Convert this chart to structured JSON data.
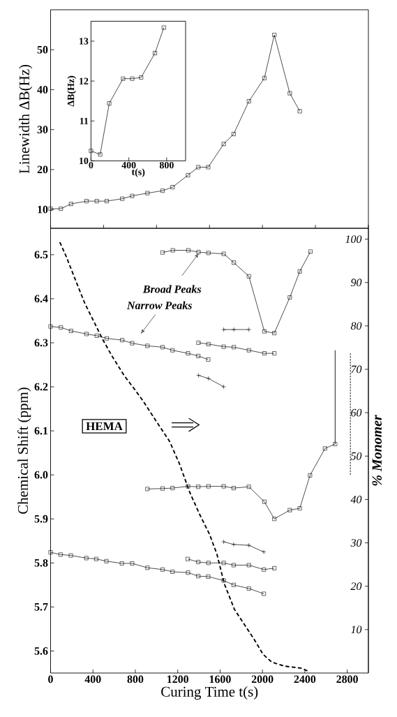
{
  "chart_data": [
    {
      "type": "line",
      "ylabel": "Linewidth ΔB(Hz)",
      "color": "#000000",
      "marker": "square",
      "x": [
        0,
        97,
        193,
        339,
        436,
        530,
        676,
        770,
        914,
        1057,
        1151,
        1297,
        1394,
        1488,
        1634,
        1728,
        1872,
        2018,
        2112,
        2258,
        2352
      ],
      "values": [
        10.2,
        10.2,
        11.4,
        12.1,
        12.1,
        12.1,
        12.7,
        13.4,
        14.1,
        14.7,
        15.6,
        18.6,
        20.6,
        20.6,
        26.4,
        28.9,
        37.1,
        42.9,
        53.7,
        39.1,
        34.6
      ],
      "xlim": [
        0,
        3000
      ],
      "xticks": [
        {
          "value": 0,
          "label": null
        },
        {
          "value": 500,
          "label": null
        },
        {
          "value": 1000,
          "label": null
        },
        {
          "value": 1500,
          "label": null
        },
        {
          "value": 2000,
          "label": null
        },
        {
          "value": 2500,
          "label": null
        },
        {
          "value": 3000,
          "label": null
        }
      ],
      "ylim": [
        5.3,
        60
      ],
      "yticks": [
        10,
        20,
        30,
        40,
        50
      ],
      "tick_labels": "y"
    },
    {
      "type": "line",
      "xlabel": "t(s)",
      "ylabel": "ΔB(Hz)",
      "color": "#000000",
      "marker": "square",
      "x": [
        0,
        97,
        193,
        339,
        436,
        530,
        676,
        770
      ],
      "values": [
        10.25,
        10.16,
        11.44,
        12.06,
        12.06,
        12.09,
        12.7,
        13.34
      ],
      "xlim": [
        0,
        1000
      ],
      "xticks": [
        0,
        400,
        800
      ],
      "ylim": [
        10,
        13.5
      ],
      "yticks": [
        10,
        11,
        12,
        13
      ]
    },
    {
      "type": "line",
      "xlabel": "Curing Time t(s)",
      "ylabel": "Chemical Shift (ppm)",
      "y2label": "% Monomer",
      "marker": "square",
      "series": [
        {
          "color": "#000000",
          "marker": "square",
          "x": [
            1057,
            1154,
            1300,
            1396,
            1490,
            1634,
            1730,
            1872,
            2018,
            2112,
            2258,
            2352,
            2453
          ],
          "values": [
            6.505,
            6.51,
            6.51,
            6.506,
            6.504,
            6.502,
            6.482,
            6.451,
            6.326,
            6.322,
            6.403,
            6.462,
            6.507
          ]
        },
        {
          "color": "#000000",
          "marker": "square",
          "x": [
            0,
            97,
            193,
            339,
            436,
            530,
            676,
            770,
            914,
            1057,
            1151,
            1297,
            1394,
            1488
          ],
          "values": [
            6.337,
            6.335,
            6.327,
            6.32,
            6.316,
            6.31,
            6.306,
            6.299,
            6.293,
            6.29,
            6.283,
            6.276,
            6.27,
            6.262
          ]
        },
        {
          "color": "#000000",
          "marker": "square",
          "x": [
            1396,
            1490,
            1634,
            1730,
            1872,
            2018,
            2112
          ],
          "values": [
            6.3,
            6.297,
            6.291,
            6.29,
            6.283,
            6.276,
            6.276
          ]
        },
        {
          "color": "#000000",
          "marker": "cross",
          "x": [
            1634,
            1730,
            1872
          ],
          "values": [
            6.33,
            6.33,
            6.33
          ]
        },
        {
          "color": "#000000",
          "marker": "cross",
          "x": [
            1396,
            1490,
            1634
          ],
          "values": [
            6.226,
            6.219,
            6.2
          ]
        },
        {
          "color": "#000000",
          "marker": "square",
          "x": [
            914,
            1057,
            1151,
            1297,
            1394,
            1490,
            1634,
            1728,
            1872,
            2018,
            2112,
            2258,
            2352,
            2449,
            2590,
            2686
          ],
          "values": [
            5.968,
            5.969,
            5.97,
            5.974,
            5.973,
            5.974,
            5.974,
            5.97,
            5.973,
            5.939,
            5.9,
            5.92,
            5.924,
            5.999,
            6.06,
            6.07
          ],
          "errors": [
            null,
            null,
            null,
            null,
            null,
            null,
            null,
            null,
            null,
            null,
            null,
            null,
            null,
            null,
            null,
            [
              6.07,
              6.283
            ]
          ]
        },
        {
          "color": "#000000",
          "marker": "square",
          "x": [
            0,
            94,
            191,
            337,
            431,
            527,
            673,
            770,
            914,
            1057,
            1151,
            1297,
            1394,
            1488,
            1634,
            1728,
            1872,
            2013
          ],
          "values": [
            5.824,
            5.819,
            5.817,
            5.811,
            5.809,
            5.804,
            5.799,
            5.799,
            5.789,
            5.785,
            5.78,
            5.778,
            5.77,
            5.769,
            5.76,
            5.75,
            5.742,
            5.73
          ]
        },
        {
          "color": "#000000",
          "marker": "square",
          "x": [
            1295,
            1394,
            1490,
            1634,
            1728,
            1872,
            2013,
            2112
          ],
          "values": [
            5.809,
            5.802,
            5.8,
            5.8,
            5.795,
            5.795,
            5.785,
            5.788
          ]
        },
        {
          "color": "#000000",
          "marker": "cross",
          "x": [
            1634,
            1728,
            1872,
            2013
          ],
          "values": [
            5.848,
            5.842,
            5.84,
            5.825
          ]
        },
        {
          "color": "#000000",
          "marker": "none",
          "axis": "y2",
          "line_style": "dashed",
          "x": [
            87,
            146,
            228,
            323,
            417,
            487,
            581,
            699,
            805,
            876,
            982,
            1123,
            1217,
            1311,
            1406,
            1500,
            1570,
            1641,
            1735,
            1829,
            1923,
            2006,
            2088,
            2206,
            2371,
            2441
          ],
          "values": [
            99.3,
            96.1,
            91.0,
            85.2,
            80.6,
            77.1,
            73.0,
            68.4,
            65.0,
            62.6,
            58.6,
            53.4,
            48.2,
            41.8,
            36.6,
            32.0,
            27.4,
            20.5,
            14.7,
            11.2,
            7.7,
            4.3,
            2.5,
            1.6,
            1.1,
            0.3
          ]
        },
        {
          "color": "#000000",
          "marker": "none",
          "axis": "y2",
          "line_style": "dotted",
          "x": [
            2830,
            2830
          ],
          "values": [
            45.7,
            73.8
          ]
        }
      ],
      "annotations": [
        "HEMA",
        {
          "text": "Broad Peaks",
          "x": 1398,
          "y": 6.503
        },
        "Narrow Peaks"
      ],
      "xlim": [
        0,
        3000
      ],
      "xticks": [
        0,
        400,
        800,
        1200,
        1600,
        2000,
        2400,
        2800
      ],
      "ylim": [
        5.55,
        6.56
      ],
      "yticks": [
        5.6,
        5.7,
        5.8,
        5.9,
        {
          "value": 6,
          "label": "6.0"
        },
        6.1,
        6.2,
        6.3,
        6.4,
        6.5
      ],
      "y2lim": [
        0,
        102.5
      ],
      "y2ticks": [
        10,
        20,
        30,
        40,
        50,
        60,
        70,
        80,
        90,
        100
      ]
    }
  ]
}
